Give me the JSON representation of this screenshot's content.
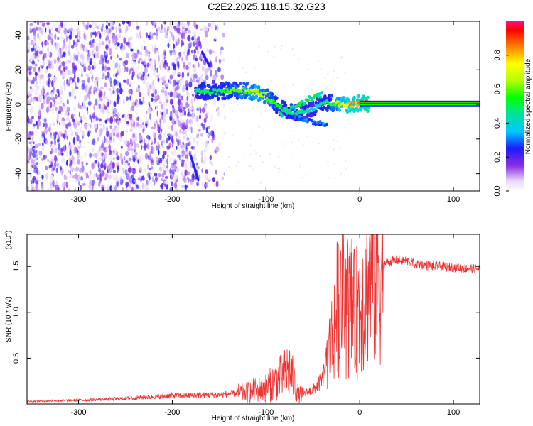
{
  "title": "C2E2.2025.118.15.32.G23",
  "chart_data": [
    {
      "type": "heatmap",
      "xlabel": "Height of straight line (km)",
      "ylabel": "Frequency (Hz)",
      "xlim": [
        -355,
        128
      ],
      "ylim": [
        -50,
        48
      ],
      "x_ticks": [
        -300,
        -200,
        -100,
        0,
        100
      ],
      "y_ticks": [
        -40,
        -20,
        0,
        20,
        40
      ],
      "colorbar": {
        "label": "Normalized spectral amplitude",
        "range": [
          0,
          1
        ],
        "ticks": [
          "0.0",
          "0.2",
          "0.4",
          "0.6",
          "0.8"
        ],
        "tick_values": [
          0.0,
          0.2,
          0.4,
          0.6,
          0.8
        ]
      },
      "ridge": {
        "x": [
          -175,
          -160,
          -140,
          -125,
          -110,
          -100,
          -90,
          -80,
          -70,
          -60,
          -50,
          -40,
          -30,
          -20,
          -10,
          0,
          10,
          128
        ],
        "y": [
          8,
          7,
          8,
          8,
          7,
          5,
          0,
          -3,
          -5,
          -4,
          -2,
          1,
          1,
          0,
          0,
          0.5,
          0.5,
          0.5
        ],
        "amplitude": [
          0.45,
          0.5,
          0.55,
          0.6,
          0.65,
          0.62,
          0.55,
          0.5,
          0.48,
          0.45,
          0.4,
          0.45,
          0.55,
          0.7,
          0.8,
          0.85,
          0.95,
          0.98
        ]
      },
      "noise_region_x": [
        -355,
        -145
      ]
    },
    {
      "type": "line",
      "xlabel": "Height of straight line (km)",
      "ylabel": "SNR (10 * v/v)",
      "y_multiplier": "(x10",
      "y_multiplier_exp": "4",
      "xlim": [
        -355,
        128
      ],
      "ylim": [
        0,
        18500
      ],
      "x_ticks": [
        -300,
        -200,
        -100,
        0,
        100
      ],
      "y_ticks": [
        5000,
        10000,
        15000
      ],
      "y_tick_labels": [
        "0.5",
        "1.0",
        "1.5"
      ],
      "color": "#ee3333",
      "series": [
        {
          "x": [
            -355,
            -300,
            -250,
            -200,
            -150,
            -120,
            -100,
            -85,
            -75,
            -65,
            -60,
            -50,
            -40,
            -30,
            -25,
            -20,
            -15,
            -10,
            -5,
            0,
            5,
            10,
            20,
            30,
            40,
            50,
            60,
            80,
            100,
            128
          ],
          "y": [
            300,
            400,
            600,
            900,
            1000,
            1300,
            1800,
            2800,
            3800,
            1000,
            1100,
            1500,
            2600,
            7000,
            10000,
            12000,
            10500,
            11000,
            9500,
            11000,
            11500,
            13000,
            14800,
            15500,
            15700,
            15600,
            15300,
            15000,
            14900,
            14700
          ]
        }
      ]
    }
  ]
}
